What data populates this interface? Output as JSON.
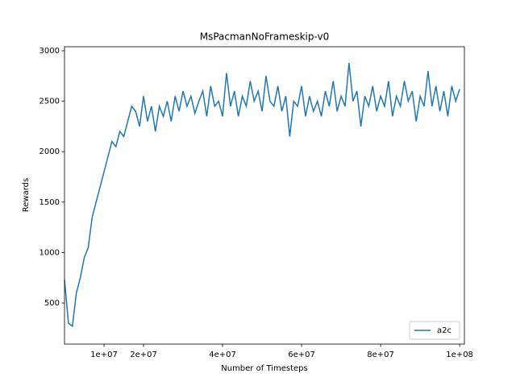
{
  "chart_data": {
    "type": "line",
    "title": "MsPacmanNoFrameskip-v0",
    "x_label": "Number of Timesteps",
    "y_label": "Rewards",
    "x": [
      0,
      1000000,
      2000000,
      3000000,
      4000000,
      5000000,
      6000000,
      7000000,
      8000000,
      9000000,
      10000000,
      11000000,
      12000000,
      13000000,
      14000000,
      15000000,
      16000000,
      17000000,
      18000000,
      19000000,
      20000000,
      21000000,
      22000000,
      23000000,
      24000000,
      25000000,
      26000000,
      27000000,
      28000000,
      29000000,
      30000000,
      31000000,
      32000000,
      33000000,
      34000000,
      35000000,
      36000000,
      37000000,
      38000000,
      39000000,
      40000000,
      41000000,
      42000000,
      43000000,
      44000000,
      45000000,
      46000000,
      47000000,
      48000000,
      49000000,
      50000000,
      51000000,
      52000000,
      53000000,
      54000000,
      55000000,
      56000000,
      57000000,
      58000000,
      59000000,
      60000000,
      61000000,
      62000000,
      63000000,
      64000000,
      65000000,
      66000000,
      67000000,
      68000000,
      69000000,
      70000000,
      71000000,
      72000000,
      73000000,
      74000000,
      75000000,
      76000000,
      77000000,
      78000000,
      79000000,
      80000000,
      81000000,
      82000000,
      83000000,
      84000000,
      85000000,
      86000000,
      87000000,
      88000000,
      89000000,
      90000000,
      91000000,
      92000000,
      93000000,
      94000000,
      95000000,
      96000000,
      97000000,
      98000000,
      99000000,
      100000000
    ],
    "series": [
      {
        "name": "a2c",
        "color": "#1f77b4",
        "values": [
          730,
          300,
          270,
          600,
          750,
          950,
          1050,
          1350,
          1500,
          1650,
          1800,
          1950,
          2100,
          2050,
          2200,
          2150,
          2300,
          2450,
          2400,
          2250,
          2550,
          2300,
          2450,
          2200,
          2450,
          2350,
          2500,
          2300,
          2550,
          2400,
          2600,
          2450,
          2550,
          2380,
          2500,
          2600,
          2350,
          2650,
          2450,
          2500,
          2350,
          2780,
          2450,
          2600,
          2350,
          2550,
          2450,
          2700,
          2500,
          2600,
          2400,
          2750,
          2500,
          2450,
          2650,
          2400,
          2550,
          2150,
          2500,
          2450,
          2650,
          2350,
          2550,
          2400,
          2500,
          2350,
          2600,
          2450,
          2700,
          2400,
          2550,
          2450,
          2880,
          2500,
          2600,
          2250,
          2550,
          2450,
          2650,
          2400,
          2550,
          2450,
          2700,
          2350,
          2550,
          2450,
          2700,
          2500,
          2600,
          2300,
          2550,
          2450,
          2800,
          2450,
          2650,
          2400,
          2600,
          2350,
          2650,
          2500,
          2620
        ]
      }
    ],
    "xlim": [
      0,
      101200000
    ],
    "xticks": [
      {
        "value": 10000000,
        "label": "1e+07"
      },
      {
        "value": 20000000,
        "label": "2e+07"
      },
      {
        "value": 40000000,
        "label": "4e+07"
      },
      {
        "value": 60000000,
        "label": "6e+07"
      },
      {
        "value": 80000000,
        "label": "8e+07"
      },
      {
        "value": 100000000,
        "label": "1e+08"
      }
    ],
    "ylim": [
      93,
      3040
    ],
    "yticks": [
      500,
      1000,
      1500,
      2000,
      2500,
      3000
    ],
    "grid": false,
    "legend": "lower right"
  }
}
